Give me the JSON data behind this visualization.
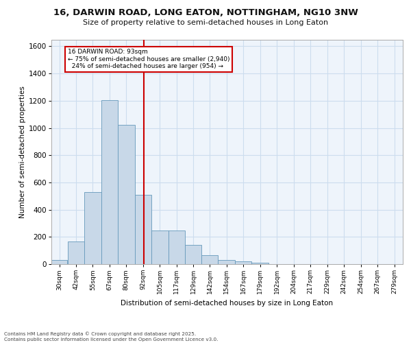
{
  "title_line1": "16, DARWIN ROAD, LONG EATON, NOTTINGHAM, NG10 3NW",
  "title_line2": "Size of property relative to semi-detached houses in Long Eaton",
  "xlabel": "Distribution of semi-detached houses by size in Long Eaton",
  "ylabel": "Number of semi-detached properties",
  "bin_labels": [
    "30sqm",
    "42sqm",
    "55sqm",
    "67sqm",
    "80sqm",
    "92sqm",
    "105sqm",
    "117sqm",
    "129sqm",
    "142sqm",
    "154sqm",
    "167sqm",
    "179sqm",
    "192sqm",
    "204sqm",
    "217sqm",
    "229sqm",
    "242sqm",
    "254sqm",
    "267sqm",
    "279sqm"
  ],
  "bar_heights": [
    30,
    165,
    530,
    1205,
    1025,
    510,
    245,
    245,
    140,
    65,
    30,
    20,
    10,
    0,
    0,
    0,
    0,
    0,
    0,
    0,
    0
  ],
  "bin_edges": [
    24,
    36,
    48.5,
    61,
    73.5,
    86,
    98.5,
    111,
    123.5,
    135.5,
    148,
    160.5,
    173,
    185.5,
    198,
    210.5,
    223,
    235.5,
    248,
    260.5,
    273,
    285.5
  ],
  "bar_color": "#c8d8e8",
  "bar_edge_color": "#6699bb",
  "vline_x": 93,
  "vline_color": "#cc0000",
  "annotation_text": "16 DARWIN ROAD: 93sqm\n← 75% of semi-detached houses are smaller (2,940)\n  24% of semi-detached houses are larger (954) →",
  "annotation_box_color": "#ffffff",
  "annotation_box_edge": "#cc0000",
  "ylim": [
    0,
    1650
  ],
  "yticks": [
    0,
    200,
    400,
    600,
    800,
    1000,
    1200,
    1400,
    1600
  ],
  "grid_color": "#ccddee",
  "background_color": "#eef4fb",
  "footer_line1": "Contains HM Land Registry data © Crown copyright and database right 2025.",
  "footer_line2": "Contains public sector information licensed under the Open Government Licence v3.0."
}
